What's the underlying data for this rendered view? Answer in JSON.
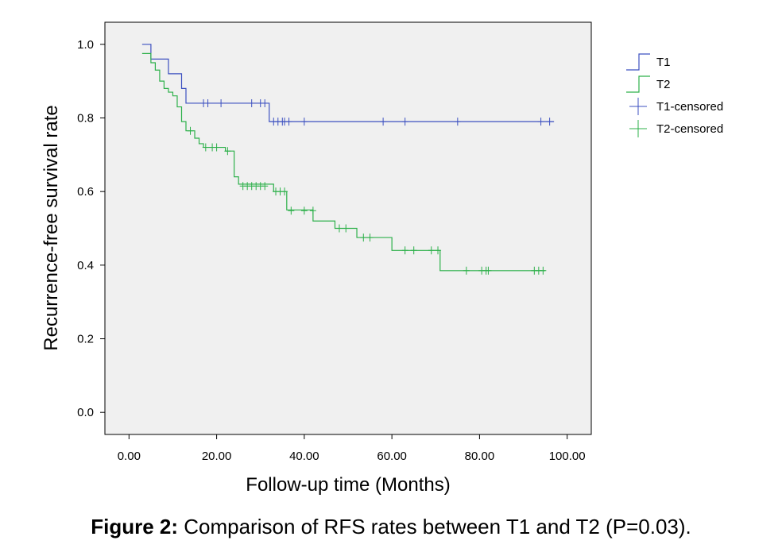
{
  "chart_data": {
    "type": "line",
    "subtype": "kaplan-meier step",
    "xlabel": "Follow-up time (Months)",
    "ylabel": "Recurrence-free survival rate",
    "xlim": [
      -5.5,
      105.5
    ],
    "ylim": [
      -0.06,
      1.06
    ],
    "xticks": [
      0,
      20,
      40,
      60,
      80,
      100
    ],
    "xtick_labels": [
      "0.00",
      "20.00",
      "40.00",
      "60.00",
      "80.00",
      "100.00"
    ],
    "yticks": [
      0,
      0.2,
      0.4,
      0.6,
      0.8,
      1.0
    ],
    "ytick_labels": [
      "0.0",
      "0.2",
      "0.4",
      "0.6",
      "0.8",
      "1.0"
    ],
    "grid": false,
    "legend_position": "right",
    "plot_background": "#f0f0f0",
    "series": [
      {
        "name": "T1",
        "color": "#3c50c0",
        "steps": [
          [
            3,
            1.0
          ],
          [
            5,
            0.96
          ],
          [
            9,
            0.92
          ],
          [
            12,
            0.88
          ],
          [
            13,
            0.84
          ],
          [
            32,
            0.79
          ],
          [
            97,
            0.79
          ]
        ],
        "censored": [
          [
            17,
            0.84
          ],
          [
            18,
            0.84
          ],
          [
            21,
            0.84
          ],
          [
            28,
            0.84
          ],
          [
            30,
            0.84
          ],
          [
            31,
            0.84
          ],
          [
            33,
            0.79
          ],
          [
            34,
            0.79
          ],
          [
            35,
            0.79
          ],
          [
            35.5,
            0.79
          ],
          [
            36.5,
            0.79
          ],
          [
            40,
            0.79
          ],
          [
            58,
            0.79
          ],
          [
            63,
            0.79
          ],
          [
            75,
            0.79
          ],
          [
            94,
            0.79
          ],
          [
            96,
            0.79
          ]
        ]
      },
      {
        "name": "T2",
        "color": "#2db04a",
        "steps": [
          [
            3,
            0.975
          ],
          [
            5,
            0.95
          ],
          [
            6,
            0.93
          ],
          [
            7,
            0.9
          ],
          [
            8,
            0.88
          ],
          [
            9,
            0.87
          ],
          [
            10,
            0.86
          ],
          [
            11,
            0.83
          ],
          [
            12,
            0.79
          ],
          [
            13,
            0.765
          ],
          [
            15,
            0.745
          ],
          [
            16,
            0.73
          ],
          [
            17,
            0.72
          ],
          [
            22,
            0.71
          ],
          [
            24,
            0.64
          ],
          [
            25,
            0.62
          ],
          [
            33,
            0.6
          ],
          [
            36,
            0.55
          ],
          [
            42,
            0.52
          ],
          [
            46,
            0.52
          ],
          [
            47,
            0.5
          ],
          [
            52,
            0.475
          ],
          [
            60,
            0.44
          ],
          [
            71,
            0.385
          ],
          [
            95,
            0.385
          ]
        ],
        "censored": [
          [
            14,
            0.765
          ],
          [
            17.5,
            0.72
          ],
          [
            19,
            0.72
          ],
          [
            20,
            0.72
          ],
          [
            22.5,
            0.71
          ],
          [
            26,
            0.615
          ],
          [
            27,
            0.615
          ],
          [
            28,
            0.615
          ],
          [
            29,
            0.615
          ],
          [
            30,
            0.615
          ],
          [
            31,
            0.615
          ],
          [
            33.5,
            0.6
          ],
          [
            34.5,
            0.6
          ],
          [
            35.5,
            0.6
          ],
          [
            37,
            0.548
          ],
          [
            40,
            0.548
          ],
          [
            42,
            0.548
          ],
          [
            48,
            0.5
          ],
          [
            49.5,
            0.5
          ],
          [
            53.5,
            0.475
          ],
          [
            55,
            0.475
          ],
          [
            63,
            0.44
          ],
          [
            65,
            0.44
          ],
          [
            69,
            0.44
          ],
          [
            70.5,
            0.44
          ],
          [
            77,
            0.385
          ],
          [
            80.5,
            0.385
          ],
          [
            81.5,
            0.385
          ],
          [
            82,
            0.385
          ],
          [
            92.5,
            0.385
          ],
          [
            93.5,
            0.385
          ],
          [
            94.5,
            0.385
          ]
        ]
      }
    ],
    "legend": [
      {
        "label": "T1",
        "symbol": "step",
        "color": "#3c50c0"
      },
      {
        "label": "T2",
        "symbol": "step",
        "color": "#2db04a"
      },
      {
        "label": "T1-censored",
        "symbol": "plus",
        "color": "#3c50c0"
      },
      {
        "label": "T2-censored",
        "symbol": "plus",
        "color": "#2db04a"
      }
    ]
  },
  "caption": {
    "label": "Figure 2:",
    "text": " Comparison of RFS rates between T1 and T2 (P=0.03)."
  }
}
